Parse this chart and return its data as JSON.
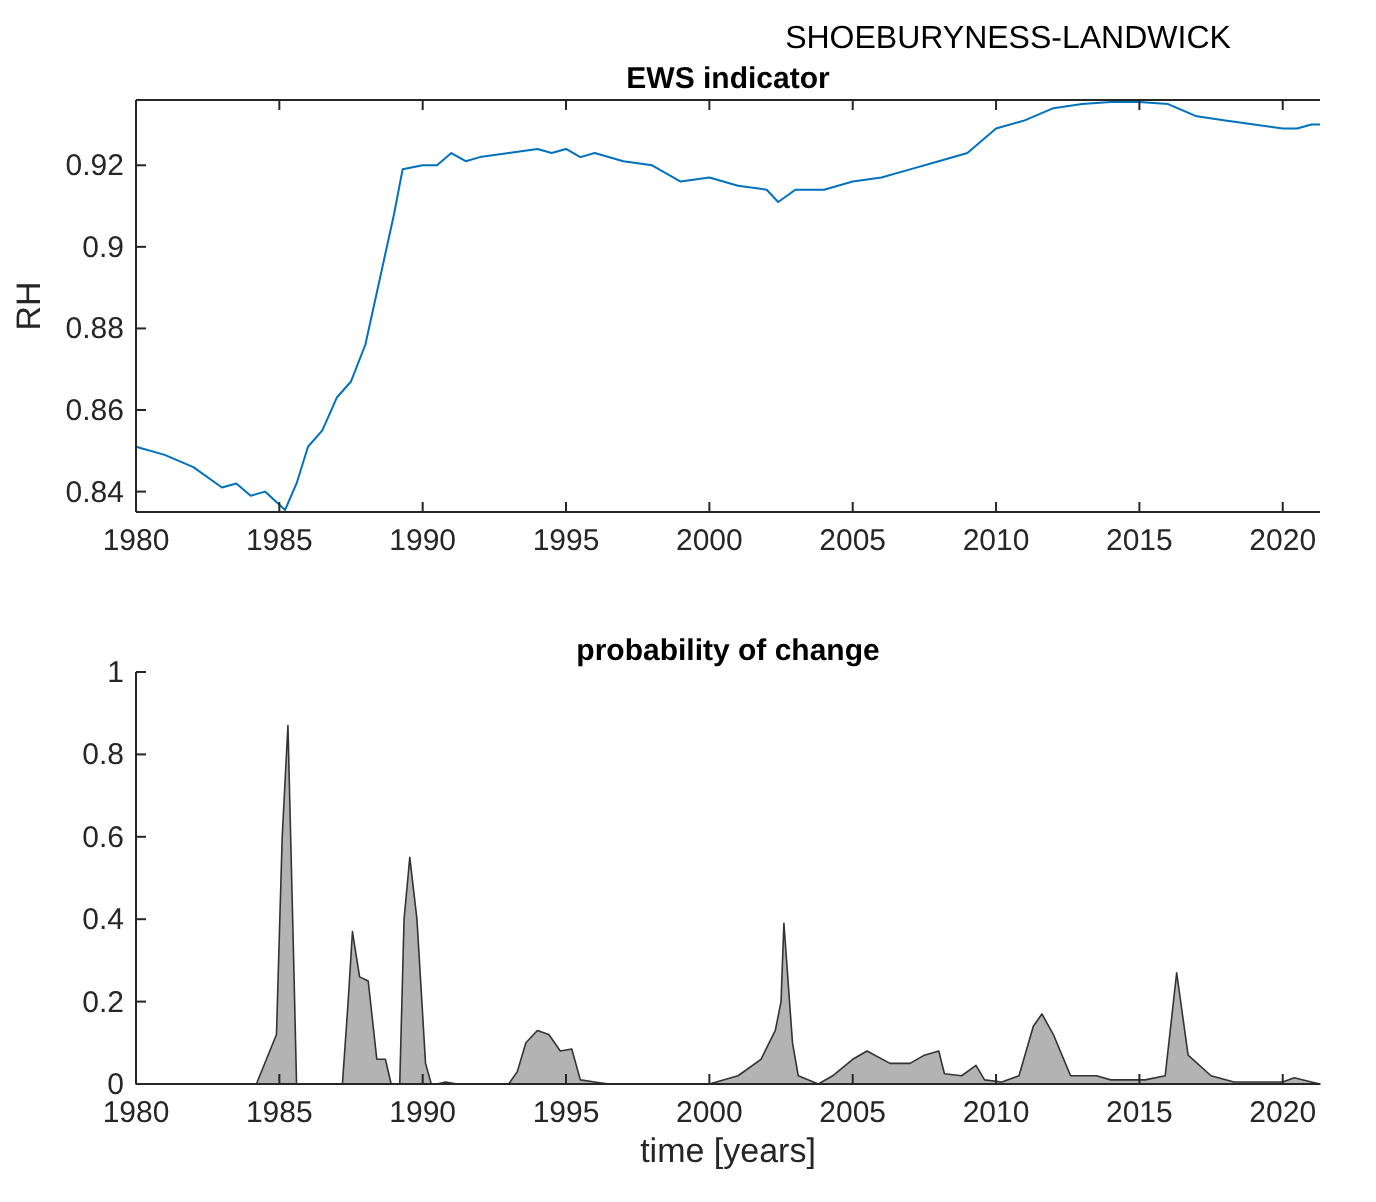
{
  "chart_data": [
    {
      "type": "line",
      "title": "EWS indicator",
      "ylabel": "RH",
      "annotations": [
        "SHOEBURYNESS-LANDWICK"
      ],
      "xlim": [
        1980,
        2021.3
      ],
      "xticks": [
        1980,
        1985,
        1990,
        1995,
        2000,
        2005,
        2010,
        2015,
        2020
      ],
      "ylim": [
        0.835,
        0.936
      ],
      "yticks": [
        0.84,
        0.86,
        0.88,
        0.9,
        0.92
      ],
      "grid": false,
      "series": [
        {
          "color": "#0072bd",
          "x": [
            1980,
            1981,
            1982,
            1983,
            1983.5,
            1984,
            1984.5,
            1985.2,
            1985.6,
            1986,
            1986.5,
            1987,
            1987.5,
            1988,
            1988.5,
            1989,
            1989.3,
            1990,
            1990.5,
            1991,
            1991.5,
            1992,
            1993,
            1994,
            1994.5,
            1995,
            1995.5,
            1996,
            1997,
            1998,
            1999,
            2000,
            2001,
            2002,
            2002.4,
            2003,
            2004,
            2005,
            2006,
            2007,
            2008,
            2009,
            2010,
            2011,
            2012,
            2013,
            2014,
            2015,
            2016,
            2017,
            2018,
            2019,
            2020,
            2020.5,
            2021,
            2021.3
          ],
          "values": [
            0.851,
            0.849,
            0.846,
            0.841,
            0.842,
            0.839,
            0.84,
            0.8355,
            0.842,
            0.851,
            0.855,
            0.863,
            0.867,
            0.876,
            0.892,
            0.908,
            0.919,
            0.92,
            0.92,
            0.923,
            0.921,
            0.922,
            0.923,
            0.924,
            0.923,
            0.924,
            0.922,
            0.923,
            0.921,
            0.92,
            0.916,
            0.917,
            0.915,
            0.914,
            0.911,
            0.914,
            0.914,
            0.916,
            0.917,
            0.919,
            0.921,
            0.923,
            0.929,
            0.931,
            0.934,
            0.935,
            0.9355,
            0.9355,
            0.935,
            0.932,
            0.931,
            0.93,
            0.929,
            0.929,
            0.93,
            0.93
          ]
        }
      ]
    },
    {
      "type": "area",
      "title": "probability of change",
      "xlabel": "time [years]",
      "xlim": [
        1980,
        2021.3
      ],
      "xticks": [
        1980,
        1985,
        1990,
        1995,
        2000,
        2005,
        2010,
        2015,
        2020
      ],
      "ylim": [
        0,
        1
      ],
      "yticks": [
        0,
        0.2,
        0.4,
        0.6,
        0.8,
        1
      ],
      "grid": false,
      "series": [
        {
          "color": "#b3b3b3",
          "x": [
            1980,
            1984.2,
            1984.9,
            1985.1,
            1985.3,
            1985.5,
            1985.6,
            1987.2,
            1987.4,
            1987.55,
            1987.8,
            1988.1,
            1988.4,
            1988.7,
            1988.9,
            1989.2,
            1989.35,
            1989.55,
            1989.8,
            1990.1,
            1990.3,
            1990.5,
            1990.8,
            1991.2,
            1993,
            1993.3,
            1993.6,
            1994,
            1994.4,
            1994.8,
            1995.2,
            1995.5,
            1996,
            1996.5,
            2000,
            2001,
            2001.8,
            2002.3,
            2002.5,
            2002.6,
            2002.9,
            2003.1,
            2003.8,
            2004.3,
            2005,
            2005.5,
            2006.3,
            2007,
            2007.5,
            2008,
            2008.2,
            2008.8,
            2009.3,
            2009.6,
            2010.2,
            2010.8,
            2011.3,
            2011.6,
            2012,
            2012.6,
            2013.5,
            2014,
            2015.2,
            2015.9,
            2016.3,
            2016.7,
            2017.5,
            2018.3,
            2020,
            2020.4,
            2021,
            2021.3
          ],
          "values": [
            0,
            0,
            0.12,
            0.6,
            0.87,
            0.3,
            0,
            0,
            0.2,
            0.37,
            0.26,
            0.25,
            0.06,
            0.06,
            0,
            0,
            0.4,
            0.55,
            0.4,
            0.05,
            0,
            0,
            0.005,
            0,
            0,
            0.03,
            0.1,
            0.13,
            0.12,
            0.08,
            0.085,
            0.01,
            0.005,
            0,
            0,
            0.02,
            0.06,
            0.13,
            0.2,
            0.39,
            0.1,
            0.02,
            0,
            0.02,
            0.06,
            0.08,
            0.05,
            0.05,
            0.07,
            0.08,
            0.025,
            0.02,
            0.045,
            0.01,
            0.005,
            0.02,
            0.14,
            0.17,
            0.12,
            0.02,
            0.02,
            0.01,
            0.01,
            0.02,
            0.27,
            0.07,
            0.02,
            0.005,
            0.005,
            0.015,
            0.005,
            0
          ]
        }
      ]
    }
  ]
}
